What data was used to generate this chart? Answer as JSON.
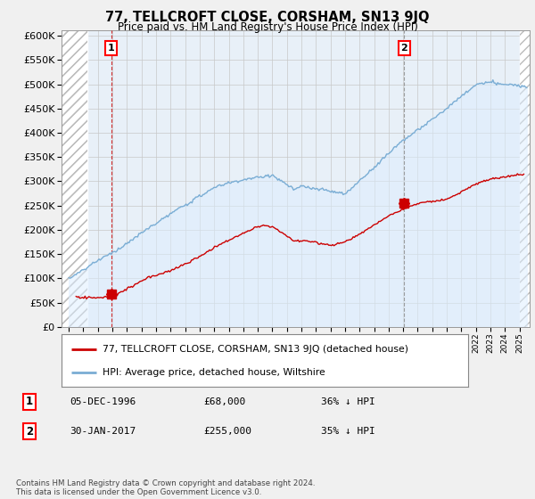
{
  "title": "77, TELLCROFT CLOSE, CORSHAM, SN13 9JQ",
  "subtitle": "Price paid vs. HM Land Registry's House Price Index (HPI)",
  "ylabel_ticks": [
    "£0",
    "£50K",
    "£100K",
    "£150K",
    "£200K",
    "£250K",
    "£300K",
    "£350K",
    "£400K",
    "£450K",
    "£500K",
    "£550K",
    "£600K"
  ],
  "ytick_values": [
    0,
    50000,
    100000,
    150000,
    200000,
    250000,
    300000,
    350000,
    400000,
    450000,
    500000,
    550000,
    600000
  ],
  "ylim": [
    0,
    612000
  ],
  "xlim_start": 1993.5,
  "xlim_end": 2025.7,
  "hpi_color": "#7aadd4",
  "hpi_fill_color": "#ddeeff",
  "price_color": "#cc0000",
  "transaction1": {
    "date": 1996.92,
    "price": 68000,
    "label": "1"
  },
  "transaction2": {
    "date": 2017.08,
    "price": 255000,
    "label": "2"
  },
  "legend_label_price": "77, TELLCROFT CLOSE, CORSHAM, SN13 9JQ (detached house)",
  "legend_label_hpi": "HPI: Average price, detached house, Wiltshire",
  "annotation1_date": "05-DEC-1996",
  "annotation1_price": "£68,000",
  "annotation1_change": "36% ↓ HPI",
  "annotation2_date": "30-JAN-2017",
  "annotation2_price": "£255,000",
  "annotation2_change": "35% ↓ HPI",
  "footnote": "Contains HM Land Registry data © Crown copyright and database right 2024.\nThis data is licensed under the Open Government Licence v3.0.",
  "background_color": "#f0f0f0",
  "plot_bg_color": "#e8f0f8",
  "hatch_bg_color": "#ffffff"
}
